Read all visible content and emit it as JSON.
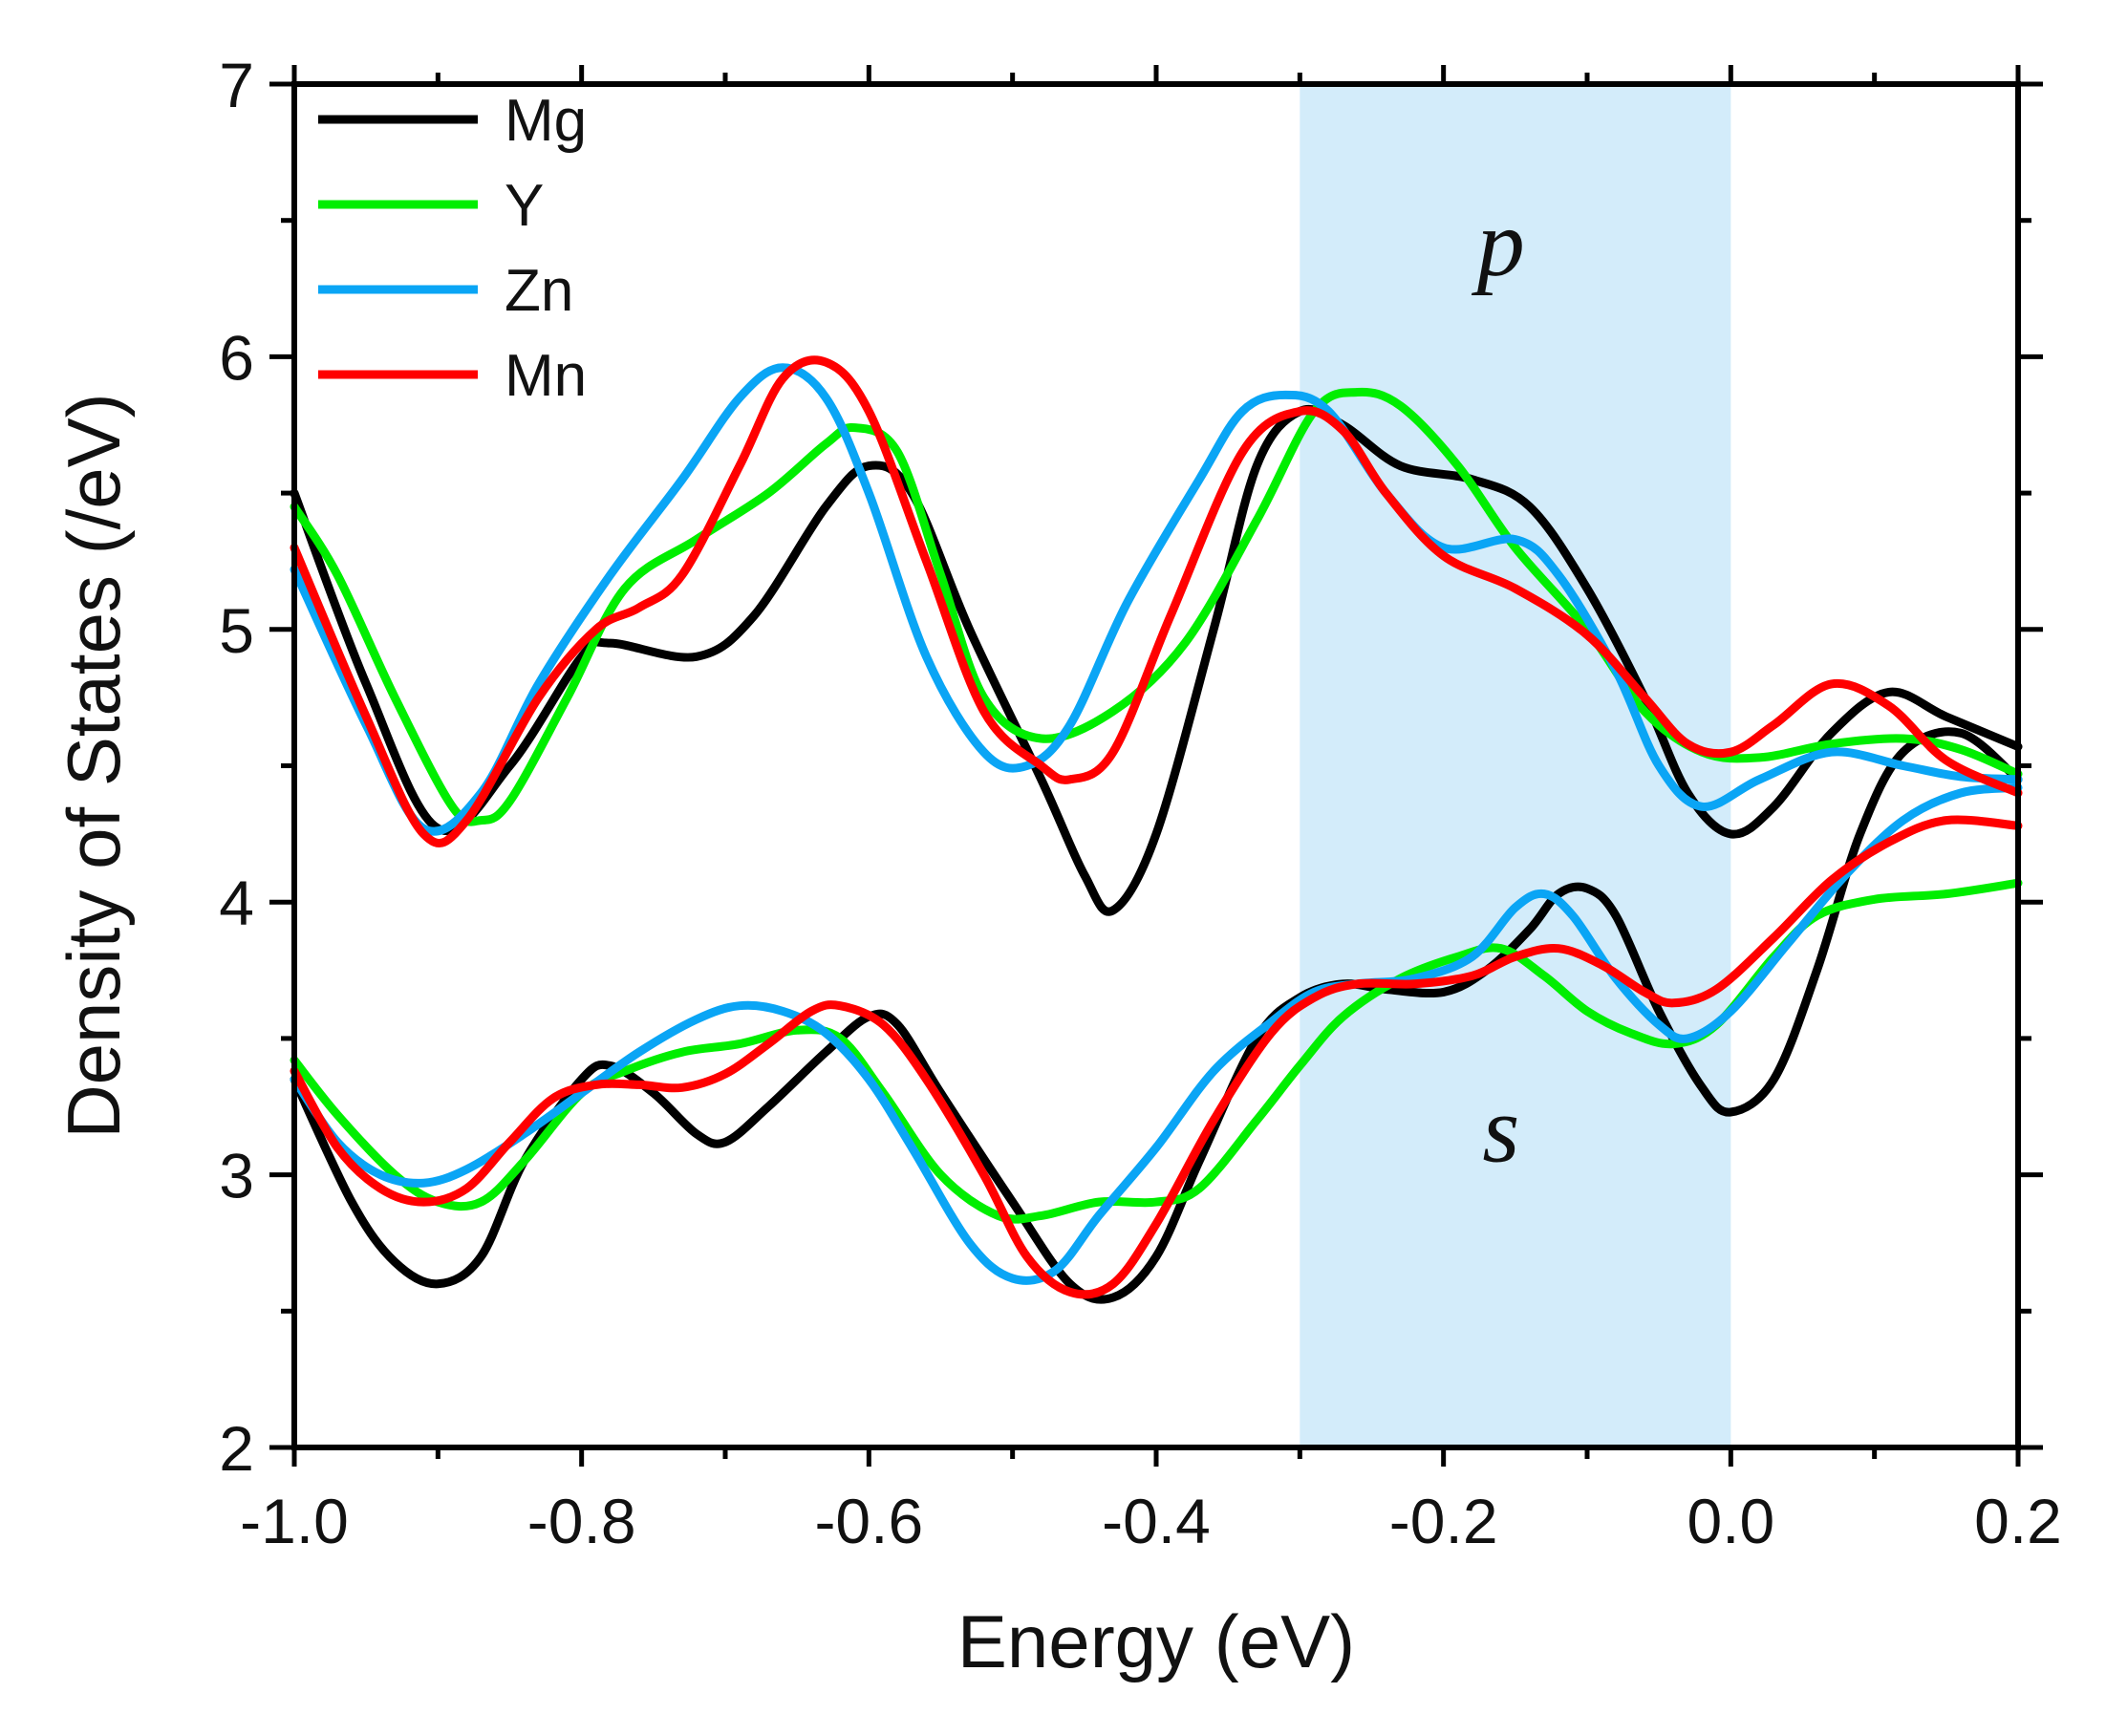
{
  "chart_data": {
    "type": "line",
    "xlabel": "Energy (eV)",
    "ylabel": "Density of States (/eV)",
    "xlim": [
      -1.0,
      0.2
    ],
    "ylim": [
      2,
      7
    ],
    "xticks": [
      "-1.0",
      "-0.8",
      "-0.6",
      "-0.4",
      "-0.2",
      "0.0",
      "0.2"
    ],
    "yticks": [
      "2",
      "3",
      "4",
      "5",
      "6",
      "7"
    ],
    "highlight_region": {
      "x_start": -0.3,
      "x_end": 0.0,
      "color": "#d3ecfa"
    },
    "annotations": [
      {
        "text": "p",
        "x": -0.16,
        "y": 6.3
      },
      {
        "text": "s",
        "x": -0.16,
        "y": 3.05
      }
    ],
    "legend": {
      "placement": "top-left",
      "entries": [
        "Mg",
        "Y",
        "Zn",
        "Mn"
      ]
    },
    "series": [
      {
        "name": "Mg",
        "color": "#000000",
        "orbital": "p",
        "points": [
          [
            -1.0,
            5.5
          ],
          [
            -0.95,
            4.8
          ],
          [
            -0.9,
            4.27
          ],
          [
            -0.85,
            4.5
          ],
          [
            -0.8,
            4.9
          ],
          [
            -0.78,
            4.95
          ],
          [
            -0.72,
            4.9
          ],
          [
            -0.68,
            5.05
          ],
          [
            -0.63,
            5.45
          ],
          [
            -0.6,
            5.6
          ],
          [
            -0.57,
            5.5
          ],
          [
            -0.53,
            5.0
          ],
          [
            -0.48,
            4.45
          ],
          [
            -0.45,
            4.1
          ],
          [
            -0.43,
            3.97
          ],
          [
            -0.4,
            4.25
          ],
          [
            -0.36,
            5.0
          ],
          [
            -0.33,
            5.6
          ],
          [
            -0.3,
            5.8
          ],
          [
            -0.27,
            5.75
          ],
          [
            -0.23,
            5.6
          ],
          [
            -0.18,
            5.55
          ],
          [
            -0.14,
            5.45
          ],
          [
            -0.1,
            5.15
          ],
          [
            -0.06,
            4.75
          ],
          [
            -0.03,
            4.4
          ],
          [
            0.0,
            4.25
          ],
          [
            0.03,
            4.35
          ],
          [
            0.07,
            4.62
          ],
          [
            0.11,
            4.77
          ],
          [
            0.15,
            4.68
          ],
          [
            0.2,
            4.57
          ]
        ]
      },
      {
        "name": "Y",
        "color": "#00ee00",
        "orbital": "p",
        "points": [
          [
            -1.0,
            5.45
          ],
          [
            -0.97,
            5.2
          ],
          [
            -0.93,
            4.75
          ],
          [
            -0.89,
            4.35
          ],
          [
            -0.87,
            4.3
          ],
          [
            -0.85,
            4.37
          ],
          [
            -0.81,
            4.75
          ],
          [
            -0.77,
            5.15
          ],
          [
            -0.72,
            5.33
          ],
          [
            -0.67,
            5.5
          ],
          [
            -0.63,
            5.68
          ],
          [
            -0.61,
            5.74
          ],
          [
            -0.58,
            5.65
          ],
          [
            -0.55,
            5.2
          ],
          [
            -0.52,
            4.75
          ],
          [
            -0.48,
            4.6
          ],
          [
            -0.43,
            4.7
          ],
          [
            -0.38,
            4.95
          ],
          [
            -0.33,
            5.4
          ],
          [
            -0.29,
            5.8
          ],
          [
            -0.26,
            5.87
          ],
          [
            -0.23,
            5.82
          ],
          [
            -0.19,
            5.6
          ],
          [
            -0.15,
            5.3
          ],
          [
            -0.1,
            5.0
          ],
          [
            -0.06,
            4.7
          ],
          [
            -0.02,
            4.55
          ],
          [
            0.02,
            4.53
          ],
          [
            0.07,
            4.58
          ],
          [
            0.12,
            4.6
          ],
          [
            0.16,
            4.56
          ],
          [
            0.2,
            4.47
          ]
        ]
      },
      {
        "name": "Zn",
        "color": "#0aa5f5",
        "orbital": "p",
        "points": [
          [
            -1.0,
            5.22
          ],
          [
            -0.95,
            4.65
          ],
          [
            -0.91,
            4.27
          ],
          [
            -0.87,
            4.4
          ],
          [
            -0.83,
            4.8
          ],
          [
            -0.78,
            5.2
          ],
          [
            -0.73,
            5.55
          ],
          [
            -0.69,
            5.85
          ],
          [
            -0.66,
            5.96
          ],
          [
            -0.63,
            5.85
          ],
          [
            -0.6,
            5.5
          ],
          [
            -0.56,
            4.9
          ],
          [
            -0.52,
            4.55
          ],
          [
            -0.49,
            4.5
          ],
          [
            -0.46,
            4.65
          ],
          [
            -0.42,
            5.1
          ],
          [
            -0.37,
            5.55
          ],
          [
            -0.34,
            5.8
          ],
          [
            -0.31,
            5.86
          ],
          [
            -0.28,
            5.8
          ],
          [
            -0.24,
            5.5
          ],
          [
            -0.2,
            5.3
          ],
          [
            -0.15,
            5.33
          ],
          [
            -0.12,
            5.2
          ],
          [
            -0.08,
            4.85
          ],
          [
            -0.05,
            4.5
          ],
          [
            -0.02,
            4.35
          ],
          [
            0.02,
            4.45
          ],
          [
            0.07,
            4.55
          ],
          [
            0.12,
            4.5
          ],
          [
            0.16,
            4.46
          ],
          [
            0.2,
            4.45
          ]
        ]
      },
      {
        "name": "Mn",
        "color": "#ff0000",
        "orbital": "p",
        "points": [
          [
            -1.0,
            5.3
          ],
          [
            -0.95,
            4.68
          ],
          [
            -0.91,
            4.25
          ],
          [
            -0.88,
            4.3
          ],
          [
            -0.83,
            4.75
          ],
          [
            -0.79,
            5.0
          ],
          [
            -0.76,
            5.08
          ],
          [
            -0.73,
            5.2
          ],
          [
            -0.69,
            5.6
          ],
          [
            -0.66,
            5.92
          ],
          [
            -0.63,
            5.98
          ],
          [
            -0.6,
            5.8
          ],
          [
            -0.56,
            5.25
          ],
          [
            -0.52,
            4.7
          ],
          [
            -0.48,
            4.5
          ],
          [
            -0.46,
            4.45
          ],
          [
            -0.43,
            4.55
          ],
          [
            -0.39,
            5.05
          ],
          [
            -0.34,
            5.65
          ],
          [
            -0.3,
            5.8
          ],
          [
            -0.27,
            5.73
          ],
          [
            -0.24,
            5.5
          ],
          [
            -0.2,
            5.27
          ],
          [
            -0.15,
            5.15
          ],
          [
            -0.1,
            4.98
          ],
          [
            -0.06,
            4.75
          ],
          [
            -0.03,
            4.58
          ],
          [
            0.0,
            4.55
          ],
          [
            0.03,
            4.65
          ],
          [
            0.07,
            4.8
          ],
          [
            0.11,
            4.72
          ],
          [
            0.15,
            4.52
          ],
          [
            0.2,
            4.4
          ]
        ]
      },
      {
        "name": "Mg",
        "color": "#000000",
        "orbital": "s",
        "points": [
          [
            -1.0,
            3.35
          ],
          [
            -0.96,
            2.9
          ],
          [
            -0.93,
            2.68
          ],
          [
            -0.9,
            2.6
          ],
          [
            -0.87,
            2.7
          ],
          [
            -0.84,
            3.05
          ],
          [
            -0.8,
            3.35
          ],
          [
            -0.78,
            3.4
          ],
          [
            -0.75,
            3.3
          ],
          [
            -0.72,
            3.15
          ],
          [
            -0.7,
            3.12
          ],
          [
            -0.67,
            3.25
          ],
          [
            -0.63,
            3.45
          ],
          [
            -0.6,
            3.58
          ],
          [
            -0.58,
            3.55
          ],
          [
            -0.55,
            3.3
          ],
          [
            -0.5,
            2.9
          ],
          [
            -0.46,
            2.6
          ],
          [
            -0.43,
            2.55
          ],
          [
            -0.4,
            2.7
          ],
          [
            -0.37,
            3.05
          ],
          [
            -0.33,
            3.5
          ],
          [
            -0.3,
            3.65
          ],
          [
            -0.27,
            3.7
          ],
          [
            -0.24,
            3.68
          ],
          [
            -0.2,
            3.67
          ],
          [
            -0.17,
            3.75
          ],
          [
            -0.14,
            3.9
          ],
          [
            -0.12,
            4.03
          ],
          [
            -0.1,
            4.05
          ],
          [
            -0.08,
            3.95
          ],
          [
            -0.05,
            3.6
          ],
          [
            -0.02,
            3.32
          ],
          [
            0.0,
            3.23
          ],
          [
            0.03,
            3.35
          ],
          [
            0.06,
            3.75
          ],
          [
            0.09,
            4.25
          ],
          [
            0.12,
            4.55
          ],
          [
            0.16,
            4.62
          ],
          [
            0.2,
            4.45
          ]
        ]
      },
      {
        "name": "Y",
        "color": "#00ee00",
        "orbital": "s",
        "points": [
          [
            -1.0,
            3.42
          ],
          [
            -0.97,
            3.22
          ],
          [
            -0.93,
            3.0
          ],
          [
            -0.9,
            2.9
          ],
          [
            -0.87,
            2.9
          ],
          [
            -0.84,
            3.05
          ],
          [
            -0.8,
            3.3
          ],
          [
            -0.77,
            3.38
          ],
          [
            -0.73,
            3.45
          ],
          [
            -0.69,
            3.48
          ],
          [
            -0.65,
            3.53
          ],
          [
            -0.62,
            3.5
          ],
          [
            -0.59,
            3.3
          ],
          [
            -0.55,
            3.0
          ],
          [
            -0.51,
            2.85
          ],
          [
            -0.48,
            2.85
          ],
          [
            -0.44,
            2.9
          ],
          [
            -0.4,
            2.9
          ],
          [
            -0.37,
            2.95
          ],
          [
            -0.33,
            3.2
          ],
          [
            -0.3,
            3.4
          ],
          [
            -0.27,
            3.58
          ],
          [
            -0.23,
            3.72
          ],
          [
            -0.19,
            3.8
          ],
          [
            -0.16,
            3.83
          ],
          [
            -0.13,
            3.73
          ],
          [
            -0.1,
            3.6
          ],
          [
            -0.07,
            3.52
          ],
          [
            -0.04,
            3.48
          ],
          [
            -0.01,
            3.55
          ],
          [
            0.03,
            3.8
          ],
          [
            0.06,
            3.95
          ],
          [
            0.1,
            4.01
          ],
          [
            0.15,
            4.03
          ],
          [
            0.2,
            4.07
          ]
        ]
      },
      {
        "name": "Zn",
        "color": "#0aa5f5",
        "orbital": "s",
        "points": [
          [
            -1.0,
            3.35
          ],
          [
            -0.97,
            3.12
          ],
          [
            -0.94,
            3.0
          ],
          [
            -0.91,
            2.97
          ],
          [
            -0.88,
            3.02
          ],
          [
            -0.84,
            3.15
          ],
          [
            -0.8,
            3.3
          ],
          [
            -0.76,
            3.45
          ],
          [
            -0.72,
            3.57
          ],
          [
            -0.69,
            3.62
          ],
          [
            -0.66,
            3.6
          ],
          [
            -0.63,
            3.52
          ],
          [
            -0.6,
            3.35
          ],
          [
            -0.57,
            3.1
          ],
          [
            -0.53,
            2.75
          ],
          [
            -0.5,
            2.62
          ],
          [
            -0.47,
            2.65
          ],
          [
            -0.44,
            2.85
          ],
          [
            -0.4,
            3.1
          ],
          [
            -0.36,
            3.38
          ],
          [
            -0.32,
            3.56
          ],
          [
            -0.29,
            3.67
          ],
          [
            -0.26,
            3.7
          ],
          [
            -0.22,
            3.72
          ],
          [
            -0.18,
            3.8
          ],
          [
            -0.15,
            3.98
          ],
          [
            -0.13,
            4.03
          ],
          [
            -0.11,
            3.95
          ],
          [
            -0.08,
            3.72
          ],
          [
            -0.05,
            3.55
          ],
          [
            -0.03,
            3.5
          ],
          [
            0.0,
            3.6
          ],
          [
            0.04,
            3.85
          ],
          [
            0.08,
            4.1
          ],
          [
            0.12,
            4.3
          ],
          [
            0.16,
            4.4
          ],
          [
            0.2,
            4.42
          ]
        ]
      },
      {
        "name": "Mn",
        "color": "#ff0000",
        "orbital": "s",
        "points": [
          [
            -1.0,
            3.38
          ],
          [
            -0.97,
            3.1
          ],
          [
            -0.94,
            2.95
          ],
          [
            -0.91,
            2.9
          ],
          [
            -0.88,
            2.95
          ],
          [
            -0.85,
            3.12
          ],
          [
            -0.82,
            3.28
          ],
          [
            -0.79,
            3.33
          ],
          [
            -0.76,
            3.33
          ],
          [
            -0.73,
            3.32
          ],
          [
            -0.7,
            3.37
          ],
          [
            -0.67,
            3.48
          ],
          [
            -0.64,
            3.6
          ],
          [
            -0.62,
            3.62
          ],
          [
            -0.59,
            3.55
          ],
          [
            -0.56,
            3.35
          ],
          [
            -0.52,
            3.0
          ],
          [
            -0.49,
            2.7
          ],
          [
            -0.46,
            2.57
          ],
          [
            -0.43,
            2.6
          ],
          [
            -0.4,
            2.82
          ],
          [
            -0.36,
            3.2
          ],
          [
            -0.32,
            3.52
          ],
          [
            -0.29,
            3.65
          ],
          [
            -0.26,
            3.7
          ],
          [
            -0.22,
            3.7
          ],
          [
            -0.18,
            3.73
          ],
          [
            -0.15,
            3.8
          ],
          [
            -0.12,
            3.83
          ],
          [
            -0.09,
            3.77
          ],
          [
            -0.06,
            3.67
          ],
          [
            -0.04,
            3.63
          ],
          [
            -0.01,
            3.68
          ],
          [
            0.03,
            3.87
          ],
          [
            0.07,
            4.08
          ],
          [
            0.11,
            4.22
          ],
          [
            0.15,
            4.3
          ],
          [
            0.2,
            4.28
          ]
        ]
      }
    ]
  }
}
